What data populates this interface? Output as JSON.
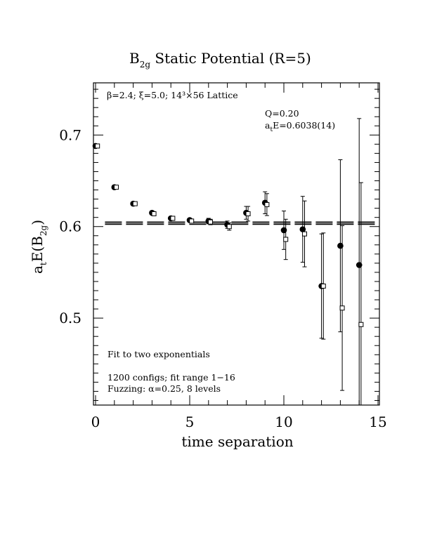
{
  "chart_data": {
    "type": "scatter",
    "title_main": "B",
    "title_sub": "2g",
    "title_rest": " Static Potential (R=5)",
    "xlabel": "time separation",
    "ylabel_a": "a",
    "ylabel_t": "t",
    "ylabel_E": "E(B",
    "ylabel_sub": "2g",
    "ylabel_close": ")",
    "xlim": [
      0,
      15
    ],
    "ylim": [
      0.405,
      0.757
    ],
    "x_ticks": [
      0,
      5,
      10,
      15
    ],
    "x_tick_labels": [
      "0",
      "5",
      "10",
      "15"
    ],
    "y_ticks": [
      0.5,
      0.6,
      0.7
    ],
    "y_tick_labels": [
      "0.5",
      "0.6",
      "0.7"
    ],
    "annotations": {
      "lattice": "β=2.4; ξ=5.0; 14³×56 Lattice",
      "q": "Q=0.20",
      "energy_a": "a",
      "energy_t": "t",
      "energy_rest": "E=0.6038(14)",
      "fit": "Fit to two exponentials",
      "configs": "1200 configs; fit range 1−16",
      "fuzzing": "Fuzzing: α=0.25, 8 levels"
    },
    "fit": {
      "value": 0.6038,
      "error": 0.0014,
      "x_range": [
        0.5,
        15
      ]
    },
    "series": [
      {
        "marker": "filled-circle",
        "points": [
          {
            "x": 0,
            "y": 0.688,
            "err": 0.002
          },
          {
            "x": 1,
            "y": 0.643,
            "err": 0.002
          },
          {
            "x": 2,
            "y": 0.625,
            "err": 0.002
          },
          {
            "x": 3,
            "y": 0.615,
            "err": 0.002
          },
          {
            "x": 4,
            "y": 0.609,
            "err": 0.002
          },
          {
            "x": 5,
            "y": 0.607,
            "err": 0.002
          },
          {
            "x": 6,
            "y": 0.606,
            "err": 0.003
          },
          {
            "x": 7,
            "y": 0.602,
            "err": 0.004
          },
          {
            "x": 8,
            "y": 0.615,
            "err": 0.007
          },
          {
            "x": 9,
            "y": 0.626,
            "err": 0.012
          },
          {
            "x": 10,
            "y": 0.596,
            "err": 0.021
          },
          {
            "x": 11,
            "y": 0.597,
            "err": 0.036
          },
          {
            "x": 12,
            "y": 0.535,
            "err": 0.057
          },
          {
            "x": 13,
            "y": 0.579,
            "err": 0.094
          },
          {
            "x": 14,
            "y": 0.558,
            "err": 0.16
          }
        ]
      },
      {
        "marker": "open-square",
        "points": [
          {
            "x": 0.1,
            "y": 0.688,
            "err": 0.002
          },
          {
            "x": 1.1,
            "y": 0.643,
            "err": 0.002
          },
          {
            "x": 2.1,
            "y": 0.625,
            "err": 0.002
          },
          {
            "x": 3.1,
            "y": 0.614,
            "err": 0.002
          },
          {
            "x": 4.1,
            "y": 0.609,
            "err": 0.002
          },
          {
            "x": 5.1,
            "y": 0.606,
            "err": 0.002
          },
          {
            "x": 6.1,
            "y": 0.605,
            "err": 0.003
          },
          {
            "x": 7.1,
            "y": 0.6,
            "err": 0.004
          },
          {
            "x": 8.1,
            "y": 0.614,
            "err": 0.008
          },
          {
            "x": 9.1,
            "y": 0.624,
            "err": 0.012
          },
          {
            "x": 10.1,
            "y": 0.586,
            "err": 0.022
          },
          {
            "x": 11.1,
            "y": 0.592,
            "err": 0.036
          },
          {
            "x": 12.1,
            "y": 0.535,
            "err": 0.058
          },
          {
            "x": 13.1,
            "y": 0.511,
            "err": 0.09
          },
          {
            "x": 14.1,
            "y": 0.493,
            "err": 0.155
          }
        ]
      }
    ]
  }
}
